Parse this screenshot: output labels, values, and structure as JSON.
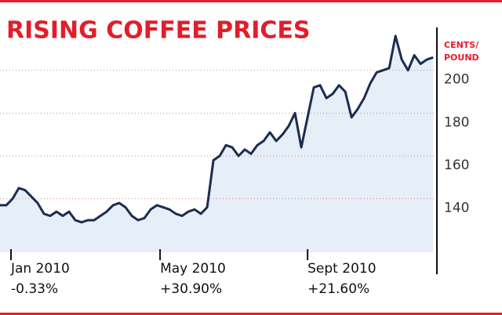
{
  "chart_data": {
    "type": "line",
    "title": "RISING COFFEE PRICES",
    "y_label": [
      "CENTS/",
      "POUND"
    ],
    "values": [
      137,
      137,
      140,
      145,
      144,
      141,
      138,
      133,
      132,
      134,
      132,
      134,
      130,
      129,
      130,
      130,
      132,
      134,
      137,
      138,
      136,
      132,
      130,
      131,
      135,
      137,
      136,
      135,
      133,
      132,
      134,
      135,
      133,
      136,
      158,
      160,
      165,
      164,
      160,
      163,
      161,
      165,
      167,
      171,
      167,
      170,
      174,
      180,
      164,
      178,
      192,
      193,
      187,
      189,
      193,
      190,
      178,
      182,
      187,
      194,
      199,
      200,
      201,
      216,
      205,
      200,
      207,
      203,
      205,
      206
    ],
    "color": "#1b2d4f",
    "area_color": "#e6eef8",
    "xlim": [
      0,
      69.6
    ],
    "xticks": [
      {
        "value": 1.75,
        "label": "Jan 2010"
      },
      {
        "value": 25.5,
        "label": "May 2010"
      },
      {
        "value": 49,
        "label": "Sept 2010"
      }
    ],
    "xtick_changes": [
      "-0.33%",
      "+30.90%",
      "+21.60%"
    ],
    "ylim": [
      115,
      220
    ],
    "yticks": [
      140,
      160,
      180,
      200
    ],
    "grid": true,
    "y_axis_side": "right"
  }
}
